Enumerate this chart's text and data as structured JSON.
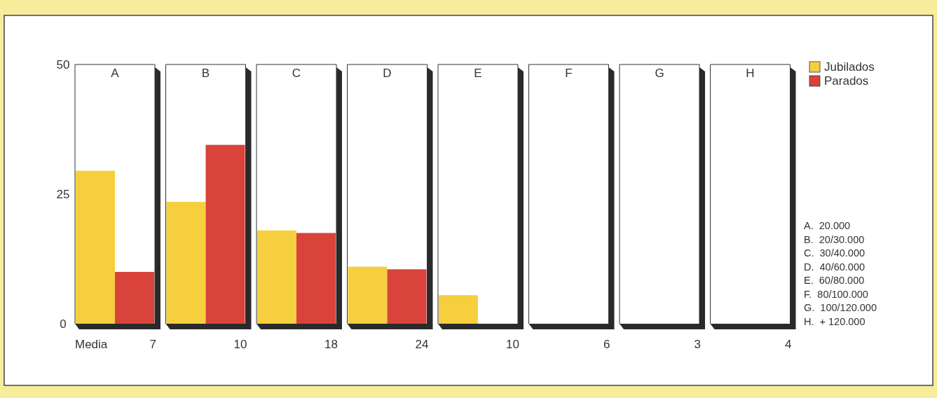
{
  "chart_data": {
    "type": "bar",
    "categories": [
      "A",
      "B",
      "C",
      "D",
      "E",
      "F",
      "G",
      "H"
    ],
    "series": [
      {
        "name": "Jubilados",
        "color": "#f6cf3f",
        "values": [
          29.5,
          23.5,
          18,
          11,
          5.5,
          0,
          0,
          0
        ]
      },
      {
        "name": "Parados",
        "color": "#d9433b",
        "values": [
          10,
          34.5,
          17.5,
          10.5,
          0,
          0,
          0,
          0
        ]
      }
    ],
    "ylim": [
      0,
      50
    ],
    "yticks": [
      0,
      25,
      50
    ],
    "grid": false,
    "legend": "top right",
    "annotations": [
      "Media",
      "7",
      "10",
      "18",
      "24",
      "10",
      "6",
      "3",
      "4",
      "A.  20.000",
      "B.  20/30.000",
      "C.  30/40.000",
      "D.  40/60.000",
      "E.  60/80.000",
      "F.  80/100.000",
      "G.  100/120.000",
      "H.  + 120.000"
    ]
  }
}
